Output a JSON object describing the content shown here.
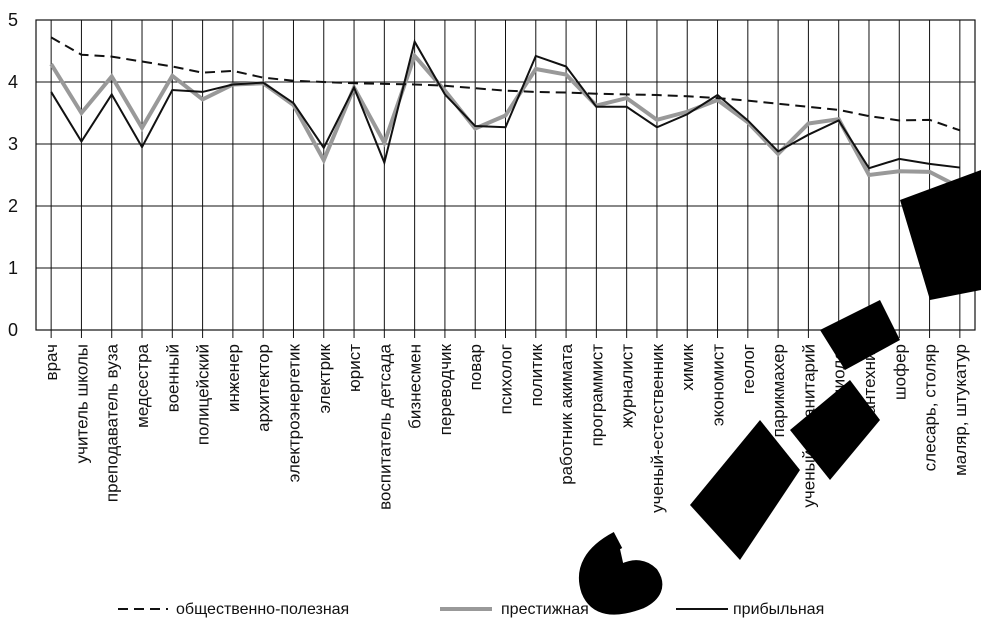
{
  "chart_data": {
    "type": "line",
    "title": "",
    "xlabel": "",
    "ylabel": "",
    "ylim": [
      0,
      5
    ],
    "yticks": [
      "0",
      "1",
      "2",
      "3",
      "4",
      "5"
    ],
    "grid": true,
    "legend_position": "bottom",
    "categories": [
      "врач",
      "учитель школы",
      "преподаватель вуза",
      "медсестра",
      "военный",
      "полицейский",
      "инженер",
      "архитектор",
      "электроэнергетик",
      "электрик",
      "юрист",
      "воспитатель детсада",
      "бизнесмен",
      "переводчик",
      "повар",
      "психолог",
      "политик",
      "работник акимата",
      "программист",
      "журналист",
      "ученый-естественник",
      "химик",
      "экономист",
      "геолог",
      "парикмахер",
      "ученый-гуманитарий",
      "социолог",
      "сантехник",
      "шофер",
      "слесарь, столяр",
      "маляр, штукатур"
    ],
    "series": [
      {
        "name": "общественно-полезная",
        "style": "dashed",
        "color": "#111111",
        "values": [
          4.72,
          4.44,
          4.41,
          4.33,
          4.25,
          4.15,
          4.18,
          4.07,
          4.02,
          4.0,
          3.98,
          3.97,
          3.96,
          3.94,
          3.9,
          3.86,
          3.84,
          3.83,
          3.81,
          3.8,
          3.79,
          3.77,
          3.74,
          3.7,
          3.65,
          3.6,
          3.55,
          3.45,
          3.38,
          3.39,
          3.22
        ]
      },
      {
        "name": "престижная",
        "style": "solid-thick",
        "color": "#999999",
        "values": [
          4.29,
          3.5,
          4.09,
          3.26,
          4.1,
          3.72,
          3.96,
          3.98,
          3.63,
          2.74,
          3.91,
          3.02,
          4.42,
          3.86,
          3.25,
          3.46,
          4.21,
          4.12,
          3.62,
          3.74,
          3.39,
          3.52,
          3.71,
          3.35,
          2.84,
          3.33,
          3.4,
          2.5,
          2.56,
          2.55,
          2.3
        ]
      },
      {
        "name": "прибыльная",
        "style": "solid",
        "color": "#111111",
        "values": [
          3.84,
          3.04,
          3.8,
          2.95,
          3.87,
          3.84,
          3.96,
          3.99,
          3.66,
          2.94,
          3.91,
          2.7,
          4.65,
          3.8,
          3.29,
          3.27,
          4.42,
          4.25,
          3.6,
          3.6,
          3.27,
          3.48,
          3.79,
          3.38,
          2.88,
          3.15,
          3.38,
          2.61,
          2.76,
          2.68,
          2.62
        ]
      }
    ]
  },
  "legend": [
    {
      "label": "общественно-полезная"
    },
    {
      "label": "престижная"
    },
    {
      "label": "прибыльная"
    }
  ]
}
